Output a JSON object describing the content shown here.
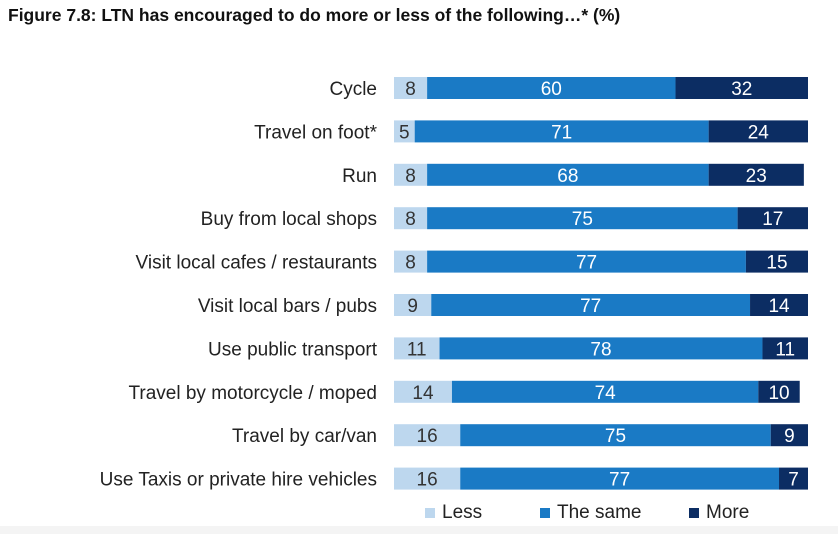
{
  "chart_data": {
    "type": "bar",
    "orientation": "horizontal",
    "stacked": true,
    "title": "Figure 7.8: LTN has encouraged to do more or less of the following…* (%)",
    "categories": [
      "Cycle",
      "Travel on foot*",
      "Run",
      "Buy from local shops",
      "Visit local cafes / restaurants",
      "Visit local bars / pubs",
      "Use public transport",
      "Travel by motorcycle / moped",
      "Travel by car/van",
      "Use Taxis or private hire vehicles"
    ],
    "series": [
      {
        "name": "Less",
        "color": "#bdd7ee",
        "label_color": "#333333",
        "values": [
          8,
          5,
          8,
          8,
          8,
          9,
          11,
          14,
          16,
          16
        ]
      },
      {
        "name": "The same",
        "color": "#1a7ac5",
        "label_color": "#ffffff",
        "values": [
          60,
          71,
          68,
          75,
          77,
          77,
          78,
          74,
          75,
          77
        ]
      },
      {
        "name": "More",
        "color": "#0c2d63",
        "label_color": "#ffffff",
        "values": [
          32,
          24,
          23,
          17,
          15,
          14,
          11,
          10,
          9,
          7
        ]
      }
    ],
    "xlim": [
      0,
      100
    ],
    "grid": false,
    "legend_position": "bottom"
  }
}
